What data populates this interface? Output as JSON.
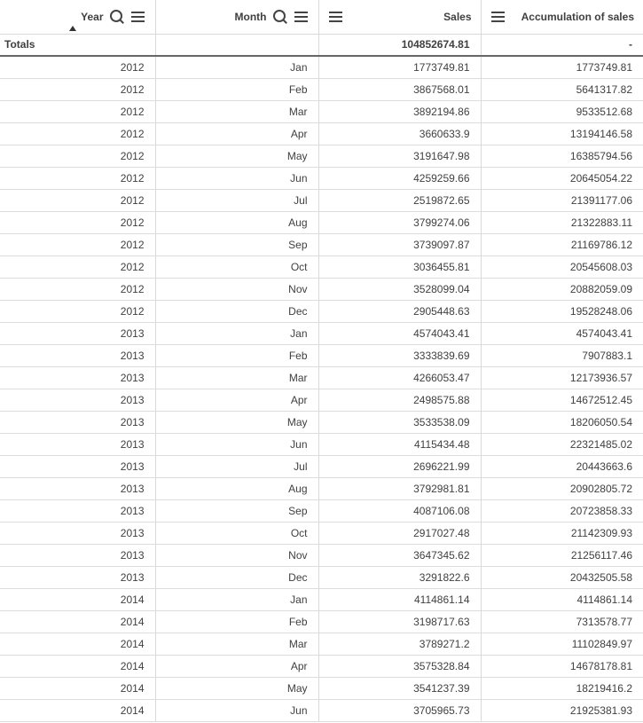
{
  "headers": {
    "year": "Year",
    "month": "Month",
    "sales": "Sales",
    "accum": "Accumulation of sales"
  },
  "totals": {
    "label": "Totals",
    "sales": "104852674.81",
    "accum": "-"
  },
  "sort": "ascending",
  "rows": [
    [
      "2012",
      "Jan",
      "1773749.81",
      "1773749.81"
    ],
    [
      "2012",
      "Feb",
      "3867568.01",
      "5641317.82"
    ],
    [
      "2012",
      "Mar",
      "3892194.86",
      "9533512.68"
    ],
    [
      "2012",
      "Apr",
      "3660633.9",
      "13194146.58"
    ],
    [
      "2012",
      "May",
      "3191647.98",
      "16385794.56"
    ],
    [
      "2012",
      "Jun",
      "4259259.66",
      "20645054.22"
    ],
    [
      "2012",
      "Jul",
      "2519872.65",
      "21391177.06"
    ],
    [
      "2012",
      "Aug",
      "3799274.06",
      "21322883.11"
    ],
    [
      "2012",
      "Sep",
      "3739097.87",
      "21169786.12"
    ],
    [
      "2012",
      "Oct",
      "3036455.81",
      "20545608.03"
    ],
    [
      "2012",
      "Nov",
      "3528099.04",
      "20882059.09"
    ],
    [
      "2012",
      "Dec",
      "2905448.63",
      "19528248.06"
    ],
    [
      "2013",
      "Jan",
      "4574043.41",
      "4574043.41"
    ],
    [
      "2013",
      "Feb",
      "3333839.69",
      "7907883.1"
    ],
    [
      "2013",
      "Mar",
      "4266053.47",
      "12173936.57"
    ],
    [
      "2013",
      "Apr",
      "2498575.88",
      "14672512.45"
    ],
    [
      "2013",
      "May",
      "3533538.09",
      "18206050.54"
    ],
    [
      "2013",
      "Jun",
      "4115434.48",
      "22321485.02"
    ],
    [
      "2013",
      "Jul",
      "2696221.99",
      "20443663.6"
    ],
    [
      "2013",
      "Aug",
      "3792981.81",
      "20902805.72"
    ],
    [
      "2013",
      "Sep",
      "4087106.08",
      "20723858.33"
    ],
    [
      "2013",
      "Oct",
      "2917027.48",
      "21142309.93"
    ],
    [
      "2013",
      "Nov",
      "3647345.62",
      "21256117.46"
    ],
    [
      "2013",
      "Dec",
      "3291822.6",
      "20432505.58"
    ],
    [
      "2014",
      "Jan",
      "4114861.14",
      "4114861.14"
    ],
    [
      "2014",
      "Feb",
      "3198717.63",
      "7313578.77"
    ],
    [
      "2014",
      "Mar",
      "3789271.2",
      "11102849.97"
    ],
    [
      "2014",
      "Apr",
      "3575328.84",
      "14678178.81"
    ],
    [
      "2014",
      "May",
      "3541237.39",
      "18219416.2"
    ],
    [
      "2014",
      "Jun",
      "3705965.73",
      "21925381.93"
    ]
  ]
}
